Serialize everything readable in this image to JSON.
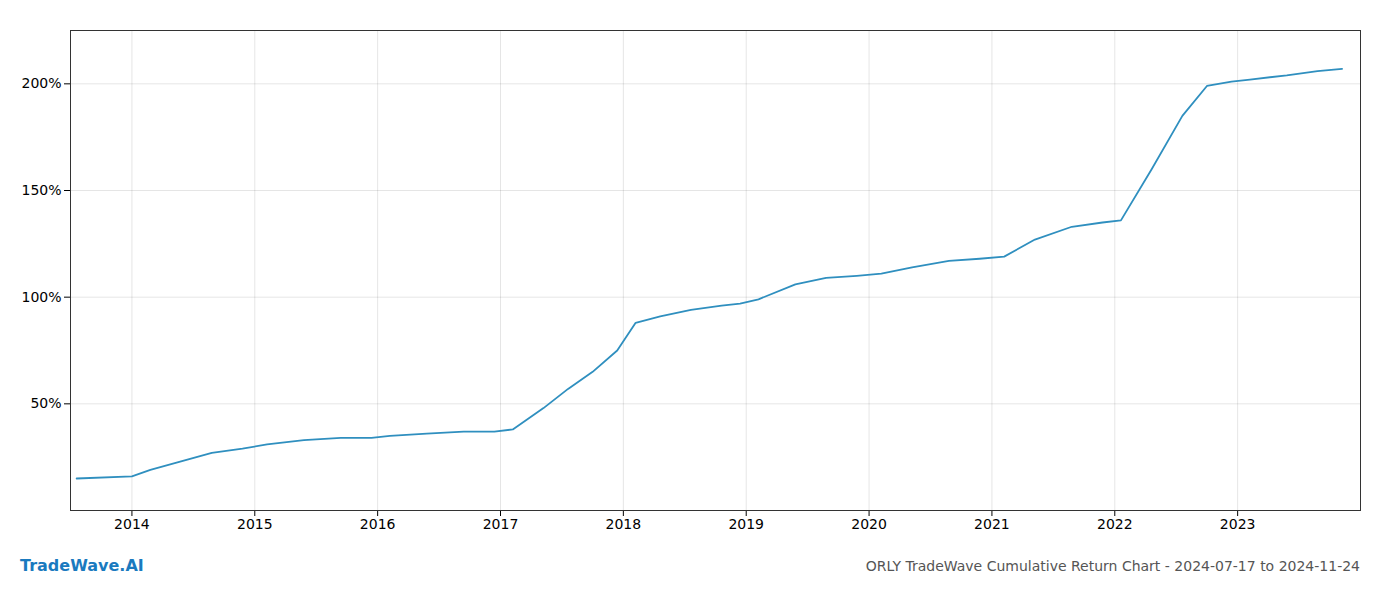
{
  "chart_data": {
    "type": "line",
    "title": "ORLY TradeWave Cumulative Return Chart - 2024-07-17 to 2024-11-24",
    "annotations": [
      "TradeWave.AI"
    ],
    "x": [
      2013.55,
      2014.0,
      2014.15,
      2014.4,
      2014.65,
      2014.9,
      2015.1,
      2015.4,
      2015.7,
      2015.95,
      2016.1,
      2016.4,
      2016.7,
      2016.95,
      2017.1,
      2017.35,
      2017.55,
      2017.75,
      2017.95,
      2018.1,
      2018.3,
      2018.55,
      2018.8,
      2018.95,
      2019.1,
      2019.4,
      2019.65,
      2019.9,
      2020.1,
      2020.35,
      2020.65,
      2020.9,
      2021.1,
      2021.35,
      2021.65,
      2021.9,
      2022.05,
      2022.3,
      2022.55,
      2022.75,
      2022.95,
      2023.1,
      2023.4,
      2023.65,
      2023.85
    ],
    "values": [
      15,
      16,
      19,
      23,
      27,
      29,
      31,
      33,
      34,
      34,
      35,
      36,
      37,
      37,
      38,
      48,
      57,
      65,
      75,
      88,
      91,
      94,
      96,
      97,
      99,
      106,
      109,
      110,
      111,
      114,
      117,
      118,
      119,
      127,
      133,
      135,
      136,
      160,
      185,
      199,
      201,
      202,
      204,
      206,
      207
    ],
    "color": "#2f8fbf",
    "xlim": [
      2013.5,
      2024.0
    ],
    "xticks": [
      2014,
      2015,
      2016,
      2017,
      2018,
      2019,
      2020,
      2021,
      2022,
      2023
    ],
    "ylim": [
      0,
      225
    ],
    "yticks": [
      {
        "value": 50,
        "label": "50%"
      },
      {
        "value": 100,
        "label": "100%"
      },
      {
        "value": 150,
        "label": "150%"
      },
      {
        "value": 200,
        "label": "200%"
      }
    ],
    "grid": true
  }
}
